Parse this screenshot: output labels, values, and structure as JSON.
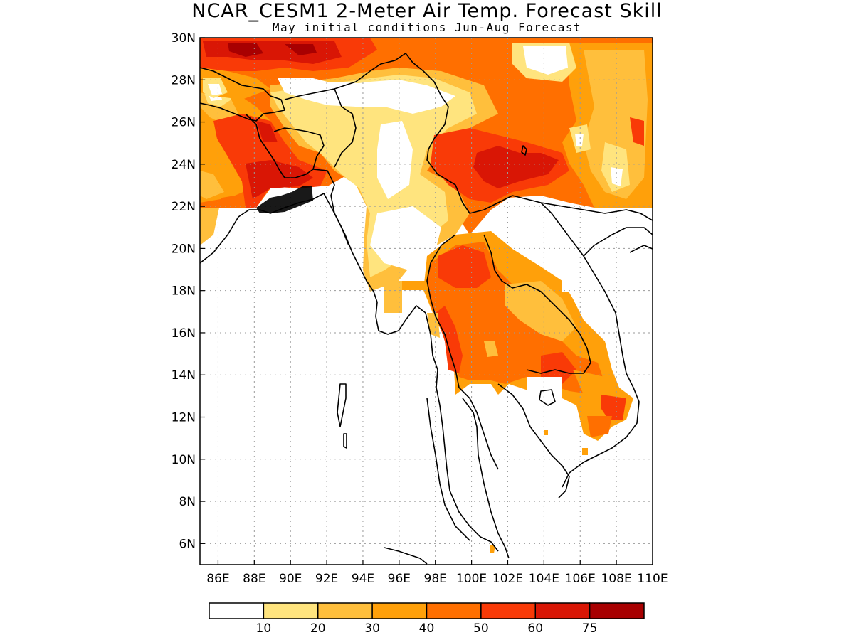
{
  "title": "NCAR_CESM1 2-Meter Air Temp. Forecast Skill",
  "subtitle": "May initial conditions  Jun-Aug Forecast",
  "map": {
    "lon_range": [
      85,
      110
    ],
    "lat_range": [
      5,
      30
    ],
    "lat_ticks": [
      "6N",
      "8N",
      "10N",
      "12N",
      "14N",
      "16N",
      "18N",
      "20N",
      "22N",
      "24N",
      "26N",
      "28N",
      "30N"
    ],
    "lat_tick_values": [
      6,
      8,
      10,
      12,
      14,
      16,
      18,
      20,
      22,
      24,
      26,
      28,
      30
    ],
    "lon_ticks": [
      "86E",
      "88E",
      "90E",
      "92E",
      "94E",
      "96E",
      "98E",
      "100E",
      "102E",
      "104E",
      "106E",
      "108E",
      "110E"
    ],
    "lon_tick_values": [
      86,
      88,
      90,
      92,
      94,
      96,
      98,
      100,
      102,
      104,
      106,
      108,
      110
    ],
    "gridlines": "dotted"
  },
  "colorbar": {
    "colors": [
      "#ffffff",
      "#ffe47e",
      "#ffbf3c",
      "#ffa00a",
      "#ff6f00",
      "#f93a07",
      "#d91605",
      "#a80001"
    ],
    "labels": [
      "10",
      "20",
      "30",
      "40",
      "50",
      "60",
      "75"
    ]
  }
}
